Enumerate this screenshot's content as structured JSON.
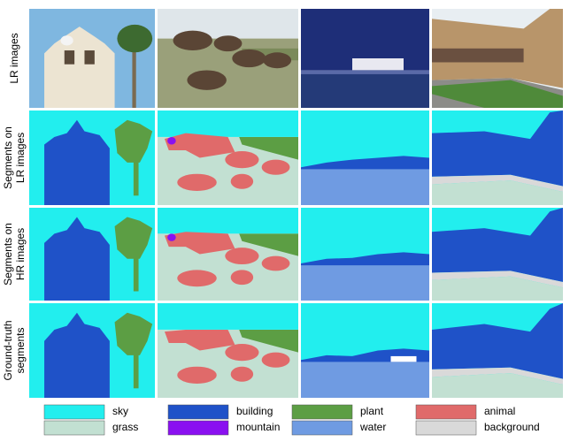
{
  "row_labels": [
    [
      "LR images"
    ],
    [
      "Segments on",
      "LR images"
    ],
    [
      "Segments on",
      "HR images"
    ],
    [
      "Ground-truth",
      "segments"
    ]
  ],
  "legend": [
    {
      "label": "sky",
      "color": "#22eeee"
    },
    {
      "label": "grass",
      "color": "#c2e0d2"
    },
    {
      "label": "building",
      "color": "#1f52c8"
    },
    {
      "label": "mountain",
      "color": "#8a10f0"
    },
    {
      "label": "plant",
      "color": "#5c9e44"
    },
    {
      "label": "water",
      "color": "#6f9be2"
    },
    {
      "label": "animal",
      "color": "#e06a6a"
    },
    {
      "label": "background",
      "color": "#d9d9d9"
    }
  ]
}
